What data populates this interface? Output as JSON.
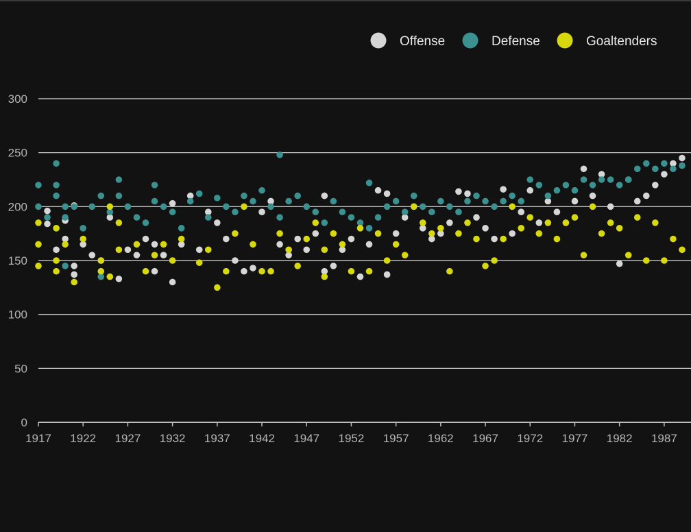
{
  "chart_data": {
    "type": "scatter",
    "title": "",
    "xlabel": "",
    "ylabel": "",
    "xlim": [
      1917,
      1990
    ],
    "ylim": [
      0,
      300
    ],
    "x_ticks": [
      "1917",
      "1922",
      "1927",
      "1932",
      "1937",
      "1942",
      "1947",
      "1952",
      "1957",
      "1962",
      "1967",
      "1972",
      "1977",
      "1982",
      "1987"
    ],
    "y_ticks": [
      "0",
      "50",
      "100",
      "150",
      "200",
      "250",
      "300"
    ],
    "grid": "horizontal",
    "legend_position": "top-right",
    "series": [
      {
        "name": "Offense",
        "color": "#d6d6d6",
        "points": [
          {
            "x": 1918,
            "y": 196
          },
          {
            "x": 1918,
            "y": 184
          },
          {
            "x": 1919,
            "y": 160
          },
          {
            "x": 1920,
            "y": 187
          },
          {
            "x": 1920,
            "y": 170
          },
          {
            "x": 1921,
            "y": 201
          },
          {
            "x": 1921,
            "y": 145
          },
          {
            "x": 1921,
            "y": 137
          },
          {
            "x": 1922,
            "y": 165
          },
          {
            "x": 1923,
            "y": 155
          },
          {
            "x": 1924,
            "y": 150
          },
          {
            "x": 1925,
            "y": 190
          },
          {
            "x": 1926,
            "y": 133
          },
          {
            "x": 1927,
            "y": 160
          },
          {
            "x": 1928,
            "y": 155
          },
          {
            "x": 1929,
            "y": 170
          },
          {
            "x": 1930,
            "y": 165
          },
          {
            "x": 1930,
            "y": 140
          },
          {
            "x": 1931,
            "y": 155
          },
          {
            "x": 1932,
            "y": 203
          },
          {
            "x": 1932,
            "y": 130
          },
          {
            "x": 1933,
            "y": 165
          },
          {
            "x": 1934,
            "y": 210
          },
          {
            "x": 1935,
            "y": 160
          },
          {
            "x": 1936,
            "y": 195
          },
          {
            "x": 1937,
            "y": 185
          },
          {
            "x": 1938,
            "y": 170
          },
          {
            "x": 1939,
            "y": 150
          },
          {
            "x": 1940,
            "y": 140
          },
          {
            "x": 1941,
            "y": 143
          },
          {
            "x": 1942,
            "y": 195
          },
          {
            "x": 1943,
            "y": 205
          },
          {
            "x": 1944,
            "y": 165
          },
          {
            "x": 1945,
            "y": 155
          },
          {
            "x": 1946,
            "y": 170
          },
          {
            "x": 1947,
            "y": 160
          },
          {
            "x": 1948,
            "y": 175
          },
          {
            "x": 1949,
            "y": 210
          },
          {
            "x": 1949,
            "y": 140
          },
          {
            "x": 1950,
            "y": 145
          },
          {
            "x": 1951,
            "y": 160
          },
          {
            "x": 1952,
            "y": 170
          },
          {
            "x": 1953,
            "y": 135
          },
          {
            "x": 1954,
            "y": 165
          },
          {
            "x": 1955,
            "y": 215
          },
          {
            "x": 1956,
            "y": 137
          },
          {
            "x": 1956,
            "y": 212
          },
          {
            "x": 1957,
            "y": 175
          },
          {
            "x": 1958,
            "y": 190
          },
          {
            "x": 1959,
            "y": 200
          },
          {
            "x": 1960,
            "y": 180
          },
          {
            "x": 1961,
            "y": 170
          },
          {
            "x": 1962,
            "y": 175
          },
          {
            "x": 1963,
            "y": 185
          },
          {
            "x": 1964,
            "y": 214
          },
          {
            "x": 1965,
            "y": 212
          },
          {
            "x": 1966,
            "y": 190
          },
          {
            "x": 1967,
            "y": 180
          },
          {
            "x": 1968,
            "y": 170
          },
          {
            "x": 1969,
            "y": 216
          },
          {
            "x": 1970,
            "y": 175
          },
          {
            "x": 1971,
            "y": 195
          },
          {
            "x": 1972,
            "y": 215
          },
          {
            "x": 1973,
            "y": 185
          },
          {
            "x": 1974,
            "y": 205
          },
          {
            "x": 1975,
            "y": 195
          },
          {
            "x": 1976,
            "y": 185
          },
          {
            "x": 1977,
            "y": 205
          },
          {
            "x": 1978,
            "y": 235
          },
          {
            "x": 1979,
            "y": 210
          },
          {
            "x": 1980,
            "y": 230
          },
          {
            "x": 1981,
            "y": 200
          },
          {
            "x": 1982,
            "y": 147
          },
          {
            "x": 1983,
            "y": 225
          },
          {
            "x": 1984,
            "y": 205
          },
          {
            "x": 1985,
            "y": 210
          },
          {
            "x": 1986,
            "y": 220
          },
          {
            "x": 1987,
            "y": 230
          },
          {
            "x": 1988,
            "y": 240
          },
          {
            "x": 1989,
            "y": 245
          },
          {
            "x": 1990,
            "y": 232
          }
        ]
      },
      {
        "name": "Defense",
        "color": "#3b9090",
        "points": [
          {
            "x": 1917,
            "y": 220
          },
          {
            "x": 1917,
            "y": 200
          },
          {
            "x": 1918,
            "y": 190
          },
          {
            "x": 1919,
            "y": 240
          },
          {
            "x": 1919,
            "y": 220
          },
          {
            "x": 1919,
            "y": 210
          },
          {
            "x": 1920,
            "y": 200
          },
          {
            "x": 1920,
            "y": 190
          },
          {
            "x": 1920,
            "y": 145
          },
          {
            "x": 1921,
            "y": 200
          },
          {
            "x": 1922,
            "y": 180
          },
          {
            "x": 1923,
            "y": 200
          },
          {
            "x": 1924,
            "y": 210
          },
          {
            "x": 1924,
            "y": 135
          },
          {
            "x": 1925,
            "y": 195
          },
          {
            "x": 1926,
            "y": 225
          },
          {
            "x": 1926,
            "y": 210
          },
          {
            "x": 1927,
            "y": 200
          },
          {
            "x": 1928,
            "y": 190
          },
          {
            "x": 1929,
            "y": 185
          },
          {
            "x": 1930,
            "y": 220
          },
          {
            "x": 1930,
            "y": 205
          },
          {
            "x": 1931,
            "y": 200
          },
          {
            "x": 1932,
            "y": 195
          },
          {
            "x": 1933,
            "y": 180
          },
          {
            "x": 1934,
            "y": 205
          },
          {
            "x": 1935,
            "y": 212
          },
          {
            "x": 1936,
            "y": 190
          },
          {
            "x": 1937,
            "y": 208
          },
          {
            "x": 1938,
            "y": 200
          },
          {
            "x": 1939,
            "y": 195
          },
          {
            "x": 1940,
            "y": 210
          },
          {
            "x": 1941,
            "y": 205
          },
          {
            "x": 1942,
            "y": 215
          },
          {
            "x": 1943,
            "y": 200
          },
          {
            "x": 1944,
            "y": 248
          },
          {
            "x": 1944,
            "y": 190
          },
          {
            "x": 1945,
            "y": 205
          },
          {
            "x": 1946,
            "y": 210
          },
          {
            "x": 1947,
            "y": 200
          },
          {
            "x": 1948,
            "y": 195
          },
          {
            "x": 1949,
            "y": 185
          },
          {
            "x": 1950,
            "y": 205
          },
          {
            "x": 1951,
            "y": 195
          },
          {
            "x": 1952,
            "y": 190
          },
          {
            "x": 1953,
            "y": 185
          },
          {
            "x": 1954,
            "y": 222
          },
          {
            "x": 1954,
            "y": 180
          },
          {
            "x": 1955,
            "y": 190
          },
          {
            "x": 1956,
            "y": 200
          },
          {
            "x": 1957,
            "y": 205
          },
          {
            "x": 1958,
            "y": 195
          },
          {
            "x": 1959,
            "y": 210
          },
          {
            "x": 1960,
            "y": 200
          },
          {
            "x": 1961,
            "y": 195
          },
          {
            "x": 1962,
            "y": 205
          },
          {
            "x": 1963,
            "y": 200
          },
          {
            "x": 1964,
            "y": 195
          },
          {
            "x": 1965,
            "y": 205
          },
          {
            "x": 1966,
            "y": 210
          },
          {
            "x": 1967,
            "y": 205
          },
          {
            "x": 1968,
            "y": 200
          },
          {
            "x": 1969,
            "y": 205
          },
          {
            "x": 1970,
            "y": 210
          },
          {
            "x": 1971,
            "y": 205
          },
          {
            "x": 1972,
            "y": 225
          },
          {
            "x": 1973,
            "y": 220
          },
          {
            "x": 1974,
            "y": 210
          },
          {
            "x": 1975,
            "y": 215
          },
          {
            "x": 1976,
            "y": 220
          },
          {
            "x": 1977,
            "y": 215
          },
          {
            "x": 1978,
            "y": 225
          },
          {
            "x": 1979,
            "y": 220
          },
          {
            "x": 1980,
            "y": 225
          },
          {
            "x": 1981,
            "y": 225
          },
          {
            "x": 1982,
            "y": 220
          },
          {
            "x": 1983,
            "y": 225
          },
          {
            "x": 1984,
            "y": 235
          },
          {
            "x": 1985,
            "y": 240
          },
          {
            "x": 1986,
            "y": 235
          },
          {
            "x": 1987,
            "y": 240
          },
          {
            "x": 1988,
            "y": 235
          },
          {
            "x": 1989,
            "y": 238
          },
          {
            "x": 1990,
            "y": 236
          }
        ]
      },
      {
        "name": "Goaltenders",
        "color": "#d8d80f",
        "points": [
          {
            "x": 1917,
            "y": 185
          },
          {
            "x": 1917,
            "y": 165
          },
          {
            "x": 1917,
            "y": 145
          },
          {
            "x": 1919,
            "y": 180
          },
          {
            "x": 1919,
            "y": 150
          },
          {
            "x": 1919,
            "y": 140
          },
          {
            "x": 1920,
            "y": 165
          },
          {
            "x": 1921,
            "y": 130
          },
          {
            "x": 1922,
            "y": 170
          },
          {
            "x": 1924,
            "y": 150
          },
          {
            "x": 1924,
            "y": 140
          },
          {
            "x": 1925,
            "y": 200
          },
          {
            "x": 1925,
            "y": 135
          },
          {
            "x": 1926,
            "y": 185
          },
          {
            "x": 1926,
            "y": 160
          },
          {
            "x": 1928,
            "y": 165
          },
          {
            "x": 1929,
            "y": 140
          },
          {
            "x": 1930,
            "y": 155
          },
          {
            "x": 1931,
            "y": 165
          },
          {
            "x": 1932,
            "y": 150
          },
          {
            "x": 1933,
            "y": 170
          },
          {
            "x": 1935,
            "y": 148
          },
          {
            "x": 1936,
            "y": 160
          },
          {
            "x": 1937,
            "y": 125
          },
          {
            "x": 1938,
            "y": 140
          },
          {
            "x": 1939,
            "y": 175
          },
          {
            "x": 1940,
            "y": 200
          },
          {
            "x": 1941,
            "y": 165
          },
          {
            "x": 1942,
            "y": 140
          },
          {
            "x": 1943,
            "y": 140
          },
          {
            "x": 1944,
            "y": 175
          },
          {
            "x": 1945,
            "y": 160
          },
          {
            "x": 1946,
            "y": 145
          },
          {
            "x": 1947,
            "y": 170
          },
          {
            "x": 1948,
            "y": 185
          },
          {
            "x": 1949,
            "y": 135
          },
          {
            "x": 1949,
            "y": 160
          },
          {
            "x": 1950,
            "y": 175
          },
          {
            "x": 1951,
            "y": 165
          },
          {
            "x": 1952,
            "y": 140
          },
          {
            "x": 1953,
            "y": 180
          },
          {
            "x": 1954,
            "y": 140
          },
          {
            "x": 1955,
            "y": 175
          },
          {
            "x": 1956,
            "y": 150
          },
          {
            "x": 1957,
            "y": 165
          },
          {
            "x": 1958,
            "y": 155
          },
          {
            "x": 1959,
            "y": 200
          },
          {
            "x": 1960,
            "y": 185
          },
          {
            "x": 1961,
            "y": 175
          },
          {
            "x": 1962,
            "y": 180
          },
          {
            "x": 1963,
            "y": 140
          },
          {
            "x": 1964,
            "y": 175
          },
          {
            "x": 1965,
            "y": 185
          },
          {
            "x": 1966,
            "y": 170
          },
          {
            "x": 1967,
            "y": 145
          },
          {
            "x": 1968,
            "y": 150
          },
          {
            "x": 1969,
            "y": 170
          },
          {
            "x": 1970,
            "y": 200
          },
          {
            "x": 1971,
            "y": 180
          },
          {
            "x": 1972,
            "y": 190
          },
          {
            "x": 1973,
            "y": 175
          },
          {
            "x": 1974,
            "y": 185
          },
          {
            "x": 1975,
            "y": 170
          },
          {
            "x": 1976,
            "y": 185
          },
          {
            "x": 1977,
            "y": 190
          },
          {
            "x": 1978,
            "y": 155
          },
          {
            "x": 1979,
            "y": 200
          },
          {
            "x": 1980,
            "y": 175
          },
          {
            "x": 1981,
            "y": 185
          },
          {
            "x": 1982,
            "y": 180
          },
          {
            "x": 1983,
            "y": 155
          },
          {
            "x": 1984,
            "y": 190
          },
          {
            "x": 1985,
            "y": 150
          },
          {
            "x": 1986,
            "y": 185
          },
          {
            "x": 1987,
            "y": 150
          },
          {
            "x": 1988,
            "y": 170
          },
          {
            "x": 1989,
            "y": 160
          },
          {
            "x": 1990,
            "y": 165
          }
        ]
      }
    ]
  }
}
